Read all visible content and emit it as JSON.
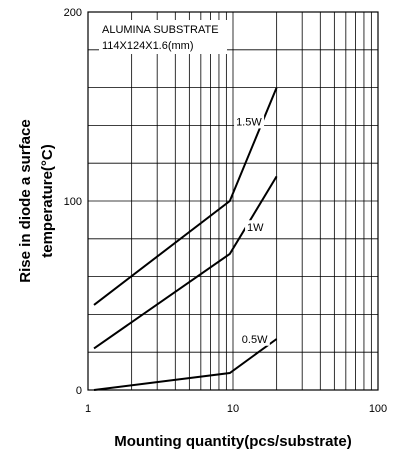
{
  "chart_data": {
    "type": "line",
    "title": "",
    "xlabel": "Mounting quantity(pcs/substrate)",
    "ylabel_line1": "Rise in diode a surface",
    "ylabel_line2": "temperature(°C)",
    "x_scale": "log",
    "xlim": [
      1,
      100
    ],
    "ylim": [
      0,
      200
    ],
    "grid": true,
    "x_ticks": [
      {
        "value": 1,
        "label": "1"
      },
      {
        "value": 10,
        "label": "10"
      },
      {
        "value": 100,
        "label": "100"
      }
    ],
    "y_ticks": [
      {
        "value": 0,
        "label": "0"
      },
      {
        "value": 100,
        "label": "100"
      },
      {
        "value": 200,
        "label": "200"
      }
    ],
    "annotations": {
      "line1": "ALUMINA SUBSTRATE",
      "line2": "114X124X1.6(mm)"
    },
    "series": [
      {
        "name": "1.5W",
        "x": [
          1.1,
          9.5,
          20
        ],
        "y": [
          45,
          100,
          160
        ],
        "label_at": [
          10.5,
          140
        ]
      },
      {
        "name": "1W",
        "x": [
          1.1,
          9.5,
          20
        ],
        "y": [
          22,
          72,
          113
        ],
        "label_at": [
          12.5,
          84
        ]
      },
      {
        "name": "0.5W",
        "x": [
          1.1,
          9.5,
          20
        ],
        "y": [
          0,
          9,
          27
        ],
        "label_at": [
          11.5,
          25
        ]
      }
    ]
  }
}
